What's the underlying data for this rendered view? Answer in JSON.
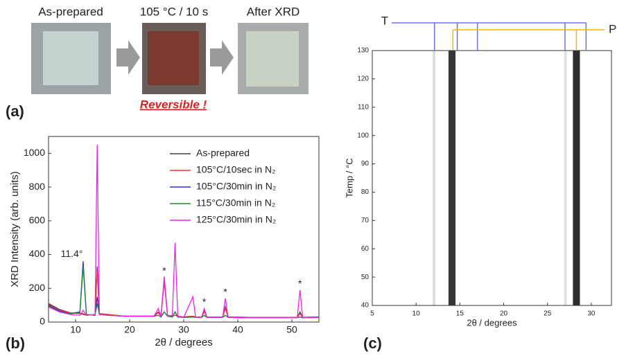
{
  "panel_labels": [
    "(a)",
    "(b)",
    "(c)"
  ],
  "photos": {
    "labels": [
      "As-prepared",
      "105 °C / 10 s",
      "After XRD"
    ],
    "note": "Reversible !"
  },
  "chart_data": [
    {
      "type": "line",
      "xlabel": "2θ / degrees",
      "ylabel": "XRD Intensity (arb. units)",
      "xlim": [
        5,
        55
      ],
      "ylim": [
        0,
        1100
      ],
      "xticks": [
        10,
        20,
        30,
        40,
        50
      ],
      "yticks": [
        0,
        200,
        400,
        600,
        800,
        1000
      ],
      "legend": "upper right",
      "x": [
        5,
        7,
        9,
        10.8,
        11.4,
        12,
        13.6,
        14.0,
        14.4,
        16,
        19,
        22,
        24.5,
        25.3,
        25.8,
        26.4,
        27,
        27.9,
        28.4,
        28.9,
        30,
        31.7,
        32.2,
        33.3,
        33.8,
        34.3,
        37.2,
        37.7,
        38.2,
        42,
        48,
        51.0,
        51.5,
        52,
        55
      ],
      "series": [
        {
          "name": "As-prepared",
          "color": "#404040",
          "values": [
            110,
            75,
            55,
            50,
            45,
            40,
            45,
            330,
            50,
            45,
            35,
            35,
            35,
            60,
            35,
            260,
            40,
            35,
            40,
            35,
            30,
            35,
            30,
            30,
            70,
            30,
            30,
            90,
            30,
            28,
            28,
            28,
            60,
            28,
            30
          ]
        },
        {
          "name": "105°C/10sec in N₂",
          "color": "#ff3030",
          "values": [
            105,
            70,
            55,
            50,
            50,
            40,
            45,
            300,
            50,
            45,
            35,
            35,
            35,
            55,
            35,
            240,
            40,
            35,
            40,
            35,
            30,
            35,
            30,
            30,
            60,
            30,
            30,
            80,
            30,
            28,
            28,
            28,
            50,
            28,
            30
          ]
        },
        {
          "name": "105°C/30min in N₂",
          "color": "#2a2ae0",
          "values": [
            100,
            65,
            50,
            60,
            360,
            45,
            40,
            150,
            45,
            40,
            35,
            35,
            35,
            40,
            30,
            60,
            35,
            30,
            60,
            30,
            28,
            30,
            28,
            28,
            40,
            28,
            28,
            40,
            28,
            26,
            26,
            26,
            30,
            26,
            28
          ]
        },
        {
          "name": "115°C/30min in N₂",
          "color": "#1a8a2a",
          "values": [
            95,
            60,
            50,
            55,
            330,
            45,
            40,
            110,
            45,
            40,
            35,
            35,
            35,
            40,
            30,
            60,
            35,
            30,
            60,
            30,
            28,
            30,
            28,
            28,
            40,
            28,
            28,
            40,
            28,
            26,
            26,
            26,
            30,
            26,
            28
          ]
        },
        {
          "name": "125°C/30min in N₂",
          "color": "#f020f0",
          "values": [
            90,
            60,
            45,
            40,
            70,
            40,
            45,
            1050,
            45,
            40,
            35,
            35,
            35,
            80,
            30,
            270,
            35,
            40,
            470,
            35,
            28,
            150,
            28,
            28,
            80,
            28,
            28,
            140,
            28,
            25,
            25,
            25,
            190,
            25,
            28
          ]
        }
      ],
      "annotations": [
        {
          "text": "11.4°",
          "x": 9.3,
          "y": 400
        },
        {
          "text": "*",
          "x": 26.4,
          "y": 300
        },
        {
          "text": "*",
          "x": 33.8,
          "y": 115
        },
        {
          "text": "*",
          "x": 37.7,
          "y": 175
        },
        {
          "text": "*",
          "x": 51.5,
          "y": 225
        }
      ]
    },
    {
      "type": "heatmap",
      "xlabel": "2θ / degrees",
      "ylabel": "Temp / °C",
      "xlim": [
        5,
        32.3
      ],
      "ylim": [
        40,
        130
      ],
      "xticks": [
        5,
        10,
        15,
        20,
        25,
        30
      ],
      "yticks": [
        40,
        50,
        60,
        70,
        80,
        90,
        100,
        110,
        120,
        130
      ],
      "bands": [
        {
          "x_range": [
            11.9,
            12.2
          ],
          "color": "#d8d8d8"
        },
        {
          "x_range": [
            13.7,
            14.5
          ],
          "color": "#202020"
        },
        {
          "x_range": [
            26.9,
            27.2
          ],
          "color": "#dcdcdc"
        },
        {
          "x_range": [
            27.9,
            28.7
          ],
          "color": "#151515"
        }
      ],
      "markers": [
        {
          "name": "T",
          "color": "#7070e0",
          "x": [
            12.1,
            14.7,
            17.0,
            27.0,
            29.4
          ]
        },
        {
          "name": "P",
          "color": "#f5b800",
          "x": [
            14.2,
            28.3
          ]
        }
      ]
    }
  ]
}
